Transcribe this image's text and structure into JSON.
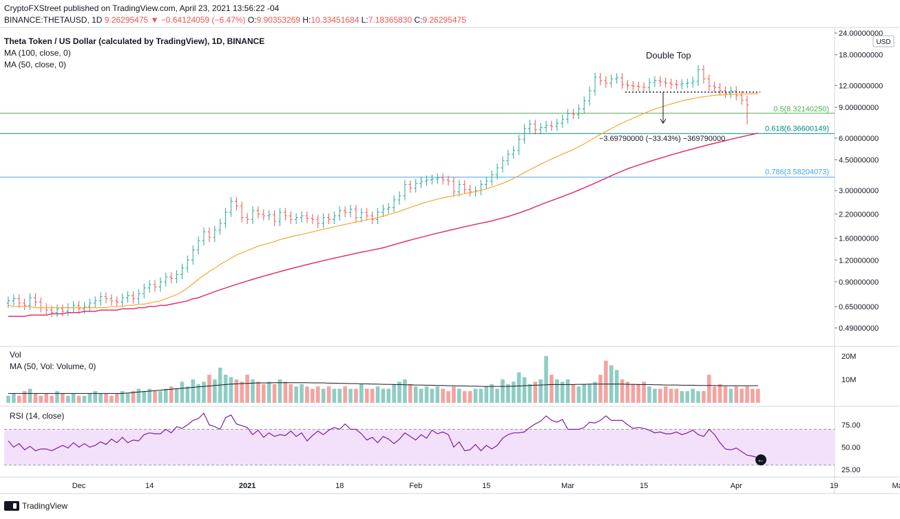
{
  "header": {
    "publisher_line": "CryptoFXStreet published on TradingView.com, April 23, 2021 13:56:22 -04",
    "symbol": "BINANCE:THETAUSD, 1D",
    "last_price": "9.26295475",
    "change": "▼ −0.64124059 (−6.47%)",
    "ohlc": {
      "o_label": "O:",
      "o": "9.90353269",
      "h_label": "H:",
      "h": "10.33451684",
      "l_label": "L:",
      "l": "7.18365830",
      "c_label": "C:",
      "c": "9.26295475"
    },
    "title": "Theta Token / US Dollar (calculated by TradingView), 1D, BINANCE",
    "ma100_label": "MA (100, close, 0)",
    "ma50_label": "MA (50, close, 0)"
  },
  "colors": {
    "up": "#26a69a",
    "down": "#ef5350",
    "ma50": "#f7a531",
    "ma100": "#e0306b",
    "fib05": "#4caf50",
    "fib0618": "#00897b",
    "fib0786": "#42a5f5",
    "rsi": "#7b1fa2",
    "rsi_band": "#f3e1fb",
    "vol_ma": "#131722",
    "change_down": "#ef5350"
  },
  "price_axis": {
    "currency": "USD",
    "ticks": [
      "24.00000000",
      "18.00000000",
      "12.00000000",
      "9.00000000",
      "6.00000000",
      "4.50000000",
      "3.00000000",
      "2.20000000",
      "1.60000000",
      "1.20000000",
      "0.90000000",
      "0.65000000",
      "0.49000000"
    ]
  },
  "time_axis": {
    "ticks": [
      "Dec",
      "14",
      "2021",
      "18",
      "Feb",
      "15",
      "Mar",
      "15",
      "Apr",
      "19",
      "May"
    ]
  },
  "annotations": {
    "double_top": "Double Top",
    "measure": "−3.69790000 (−33.43%) −369790000",
    "fib05": "0.5(8.32140250)",
    "fib0618": "0.618(6.36600149)",
    "fib0786": "0.786(3.58204073)"
  },
  "volume_pane": {
    "label": "Vol",
    "ma_label": "MA (50, Vol: Volume, 0)",
    "ticks": [
      "20M",
      "10M"
    ]
  },
  "rsi_pane": {
    "label": "RSI (14, close)",
    "ticks": [
      "75.00",
      "50.00",
      "25.00"
    ],
    "upper": 70,
    "lower": 30
  },
  "footer": {
    "brand": "TradingView"
  },
  "chart_data": {
    "type": "candlestick",
    "scale": "log",
    "ylim": [
      0.44,
      26
    ],
    "start_date": "2020-11-18",
    "end_date": "2021-04-23",
    "close": [
      0.7,
      0.72,
      0.68,
      0.66,
      0.73,
      0.69,
      0.64,
      0.62,
      0.6,
      0.63,
      0.61,
      0.64,
      0.66,
      0.63,
      0.65,
      0.68,
      0.7,
      0.74,
      0.72,
      0.7,
      0.69,
      0.73,
      0.75,
      0.72,
      0.77,
      0.83,
      0.87,
      0.84,
      0.9,
      0.96,
      0.94,
      0.99,
      1.08,
      1.2,
      1.37,
      1.55,
      1.74,
      1.62,
      1.78,
      1.95,
      2.25,
      2.6,
      2.45,
      2.1,
      2.05,
      2.3,
      2.2,
      2.15,
      2.18,
      2.0,
      2.25,
      2.15,
      2.05,
      2.1,
      2.15,
      2.08,
      2.05,
      1.95,
      2.1,
      2.05,
      2.15,
      2.3,
      2.25,
      2.35,
      2.1,
      2.25,
      2.15,
      2.05,
      2.25,
      2.35,
      2.4,
      2.65,
      2.8,
      3.25,
      3.1,
      3.3,
      3.4,
      3.45,
      3.5,
      3.55,
      3.45,
      3.4,
      2.95,
      3.25,
      3.05,
      2.95,
      3.0,
      3.25,
      3.4,
      3.7,
      4.05,
      4.45,
      4.85,
      5.1,
      5.9,
      6.8,
      7.2,
      6.7,
      6.9,
      7.1,
      7.0,
      7.3,
      7.7,
      8.3,
      8.2,
      8.8,
      9.8,
      11.2,
      13.4,
      12.8,
      12.4,
      13.1,
      13.3,
      12.2,
      12.0,
      11.9,
      11.8,
      11.7,
      12.5,
      12.8,
      12.6,
      12.4,
      12.2,
      12.1,
      12.3,
      12.4,
      12.7,
      14.8,
      13.1,
      11.9,
      11.7,
      11.2,
      10.8,
      11.2,
      10.5,
      9.9,
      9.26
    ],
    "ma50": [
      0.66,
      0.65,
      0.65,
      0.65,
      0.65,
      0.64,
      0.64,
      0.64,
      0.64,
      0.64,
      0.64,
      0.64,
      0.64,
      0.64,
      0.64,
      0.64,
      0.64,
      0.64,
      0.64,
      0.65,
      0.65,
      0.65,
      0.66,
      0.66,
      0.67,
      0.67,
      0.68,
      0.69,
      0.7,
      0.72,
      0.74,
      0.76,
      0.79,
      0.83,
      0.88,
      0.93,
      0.98,
      1.03,
      1.08,
      1.13,
      1.18,
      1.23,
      1.28,
      1.32,
      1.36,
      1.4,
      1.44,
      1.47,
      1.5,
      1.53,
      1.57,
      1.6,
      1.63,
      1.66,
      1.68,
      1.71,
      1.74,
      1.77,
      1.8,
      1.83,
      1.86,
      1.89,
      1.92,
      1.95,
      1.98,
      2.01,
      2.04,
      2.07,
      2.1,
      2.14,
      2.18,
      2.23,
      2.28,
      2.34,
      2.4,
      2.46,
      2.52,
      2.58,
      2.63,
      2.68,
      2.72,
      2.76,
      2.8,
      2.84,
      2.88,
      2.92,
      2.96,
      3.01,
      3.07,
      3.14,
      3.22,
      3.3,
      3.4,
      3.52,
      3.65,
      3.8,
      3.95,
      4.1,
      4.25,
      4.4,
      4.55,
      4.7,
      4.85,
      5.0,
      5.15,
      5.35,
      5.55,
      5.8,
      6.05,
      6.3,
      6.55,
      6.8,
      7.05,
      7.3,
      7.55,
      7.8,
      8.05,
      8.3,
      8.55,
      8.8,
      9.0,
      9.2,
      9.4,
      9.6,
      9.8,
      9.95,
      10.1,
      10.25,
      10.35,
      10.45,
      10.55,
      10.6,
      10.65,
      10.68,
      10.7,
      10.72,
      10.74,
      10.75,
      10.76
    ],
    "ma100": [
      0.57,
      0.57,
      0.57,
      0.57,
      0.58,
      0.58,
      0.58,
      0.58,
      0.59,
      0.59,
      0.59,
      0.6,
      0.6,
      0.6,
      0.61,
      0.61,
      0.61,
      0.62,
      0.62,
      0.62,
      0.62,
      0.63,
      0.63,
      0.63,
      0.64,
      0.64,
      0.65,
      0.65,
      0.66,
      0.66,
      0.67,
      0.68,
      0.69,
      0.7,
      0.72,
      0.73,
      0.75,
      0.77,
      0.79,
      0.81,
      0.83,
      0.85,
      0.87,
      0.89,
      0.91,
      0.93,
      0.95,
      0.97,
      0.99,
      1.01,
      1.03,
      1.05,
      1.07,
      1.09,
      1.11,
      1.13,
      1.15,
      1.17,
      1.19,
      1.21,
      1.23,
      1.25,
      1.27,
      1.29,
      1.31,
      1.33,
      1.35,
      1.37,
      1.39,
      1.41,
      1.44,
      1.47,
      1.5,
      1.53,
      1.56,
      1.59,
      1.62,
      1.65,
      1.68,
      1.71,
      1.74,
      1.77,
      1.8,
      1.83,
      1.86,
      1.89,
      1.92,
      1.95,
      1.98,
      2.01,
      2.05,
      2.09,
      2.13,
      2.18,
      2.23,
      2.29,
      2.35,
      2.42,
      2.49,
      2.56,
      2.63,
      2.7,
      2.77,
      2.85,
      2.93,
      3.02,
      3.11,
      3.21,
      3.31,
      3.42,
      3.53,
      3.65,
      3.77,
      3.88,
      4.0,
      4.1,
      4.2,
      4.3,
      4.4,
      4.5,
      4.6,
      4.7,
      4.8,
      4.9,
      5.0,
      5.1,
      5.2,
      5.3,
      5.4,
      5.5,
      5.6,
      5.7,
      5.8,
      5.9,
      6.0,
      6.1,
      6.2,
      6.3,
      6.4
    ],
    "volume_millions": [
      3,
      4,
      3,
      5,
      6,
      4,
      3,
      4,
      3,
      5,
      4,
      3,
      4,
      3,
      3,
      4,
      5,
      4,
      4,
      3,
      4,
      5,
      4,
      5,
      6,
      5,
      6,
      5,
      5,
      6,
      7,
      6,
      9,
      7,
      10,
      8,
      9,
      12,
      10,
      15,
      12,
      11,
      10,
      9,
      12,
      10,
      9,
      8,
      9,
      8,
      10,
      9,
      8,
      7,
      8,
      7,
      6,
      7,
      6,
      7,
      6,
      6,
      7,
      6,
      6,
      8,
      6,
      6,
      7,
      6,
      6,
      8,
      9,
      10,
      8,
      7,
      6,
      7,
      6,
      7,
      6,
      5,
      7,
      6,
      5,
      5,
      6,
      6,
      7,
      8,
      6,
      10,
      8,
      9,
      13,
      11,
      8,
      9,
      10,
      20,
      12,
      10,
      9,
      10,
      8,
      7,
      8,
      8,
      9,
      12,
      18,
      16,
      14,
      10,
      9,
      8,
      8,
      9,
      7,
      6,
      6,
      7,
      6,
      6,
      5,
      5,
      6,
      5,
      5,
      12,
      7,
      8,
      7,
      6,
      7,
      6,
      7,
      6,
      6
    ],
    "volume_ma50_millions": [
      4,
      4,
      4,
      4,
      4,
      4,
      4,
      4,
      4,
      4,
      4,
      4,
      4,
      4,
      4,
      4,
      4,
      4,
      4,
      4,
      4,
      4,
      4.2,
      4.4,
      4.6,
      4.8,
      5,
      5.2,
      5.4,
      5.6,
      5.8,
      6,
      6.2,
      6.4,
      6.6,
      6.8,
      7,
      7.2,
      7.4,
      7.6,
      7.8,
      8,
      8.1,
      8.2,
      8.3,
      8.4,
      8.5,
      8.5,
      8.5,
      8.6,
      8.6,
      8.6,
      8.6,
      8.6,
      8.6,
      8.6,
      8.5,
      8.5,
      8.5,
      8.4,
      8.4,
      8.3,
      8.3,
      8.2,
      8.2,
      8.1,
      8.1,
      8,
      8,
      7.9,
      7.9,
      7.8,
      7.8,
      7.7,
      7.7,
      7.6,
      7.6,
      7.5,
      7.5,
      7.4,
      7.4,
      7.3,
      7.3,
      7.2,
      7.2,
      7.1,
      7.1,
      7,
      7,
      7,
      7,
      7,
      7,
      7.1,
      7.2,
      7.3,
      7.4,
      7.5,
      7.6,
      7.7,
      7.8,
      7.8,
      7.8,
      7.8,
      7.8,
      7.9,
      7.9,
      8,
      8,
      8,
      8,
      8,
      8,
      8,
      7.9,
      7.9,
      7.8,
      7.8,
      7.8,
      7.7,
      7.7,
      7.6,
      7.6,
      7.6,
      7.5,
      7.5,
      7.5,
      7.4,
      7.4,
      7.4,
      7.4,
      7.3,
      7.3,
      7.3,
      7.3,
      7.3,
      7.3,
      7.3,
      7.3
    ],
    "rsi": [
      57,
      50,
      54,
      47,
      51,
      46,
      48,
      48,
      46,
      49,
      52,
      49,
      55,
      50,
      54,
      50,
      52,
      56,
      53,
      59,
      55,
      61,
      55,
      58,
      57,
      64,
      66,
      65,
      65,
      70,
      66,
      73,
      71,
      75,
      80,
      82,
      88,
      75,
      73,
      70,
      83,
      86,
      76,
      74,
      72,
      64,
      69,
      61,
      66,
      62,
      64,
      63,
      68,
      62,
      66,
      57,
      63,
      68,
      64,
      69,
      72,
      70,
      76,
      70,
      70,
      65,
      58,
      61,
      55,
      62,
      59,
      54,
      59,
      66,
      62,
      58,
      64,
      60,
      69,
      65,
      67,
      64,
      50,
      56,
      46,
      47,
      53,
      46,
      52,
      48,
      52,
      60,
      64,
      66,
      66,
      67,
      72,
      76,
      79,
      85,
      80,
      78,
      81,
      70,
      70,
      70,
      72,
      78,
      77,
      80,
      85,
      80,
      80,
      80,
      75,
      71,
      72,
      71,
      69,
      66,
      67,
      65,
      65,
      67,
      64,
      66,
      69,
      64,
      62,
      70,
      64,
      55,
      48,
      47,
      49,
      45,
      41,
      40,
      38
    ],
    "fib_levels": [
      {
        "ratio": 0.5,
        "price": 8.3214025
      },
      {
        "ratio": 0.618,
        "price": 6.36600149
      },
      {
        "ratio": 0.786,
        "price": 3.58204073
      }
    ],
    "double_top_neckline": 11.0,
    "measured_move": {
      "from": 11.0,
      "to": 7.3,
      "change": -3.6979,
      "pct": -33.43
    }
  }
}
